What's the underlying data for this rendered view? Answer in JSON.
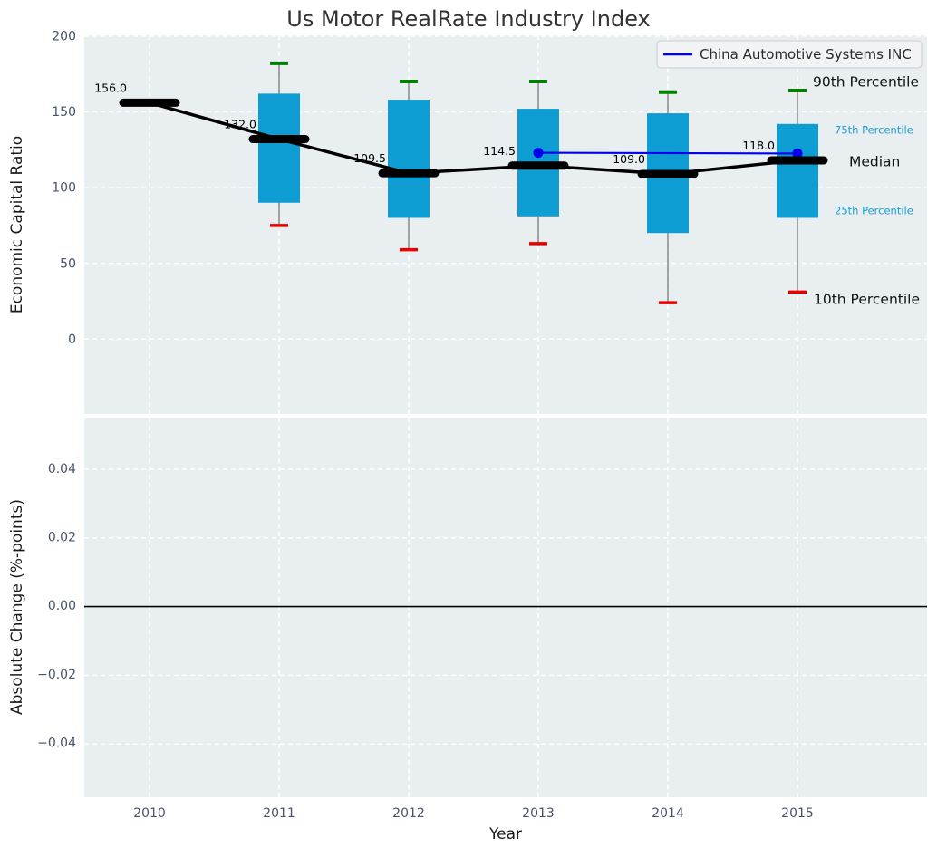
{
  "title": "Us Motor RealRate Industry Index",
  "colors": {
    "plot_background": "#e9eef0",
    "gridline": "#ffffff",
    "box_fill": "#0d9dd2",
    "p90_cap": "#008000",
    "p10_cap": "#e60000",
    "median_color": "#000000",
    "trend_line": "#000000",
    "company_line": "#0000ee",
    "whisker": "#888888",
    "zero_line": "#000000",
    "tick_label": "#47536b",
    "percentile_label_cyan": "#1a9fd4",
    "legend_fill": "#f2f3f5",
    "legend_border": "#c9ced6"
  },
  "chart_data": [
    {
      "type": "boxplot",
      "title": "Us Motor RealRate Industry Index",
      "ylabel": "Economic Capital Ratio",
      "xlabel": "Year",
      "xlim": [
        2009.5,
        2016.0
      ],
      "ylim": [
        -49.5,
        200.5
      ],
      "yticks": [
        0,
        50,
        100,
        150,
        200
      ],
      "ytick_labels": [
        "0",
        "50",
        "100",
        "150",
        "200"
      ],
      "years": [
        2010,
        2011,
        2012,
        2013,
        2014,
        2015
      ],
      "xtick_labels": [
        "2010",
        "2011",
        "2012",
        "2013",
        "2014",
        "2015"
      ],
      "grid": true,
      "legend_position": "upper right",
      "boxes": [
        {
          "year": 2010,
          "median": 156.0,
          "median_label": "156.0",
          "q1": null,
          "q3": null,
          "p10": null,
          "p90": null
        },
        {
          "year": 2011,
          "median": 132.0,
          "median_label": "132.0",
          "q1": 90,
          "q3": 162,
          "p10": 75,
          "p90": 182
        },
        {
          "year": 2012,
          "median": 109.5,
          "median_label": "109.5",
          "q1": 80,
          "q3": 158,
          "p10": 59,
          "p90": 170
        },
        {
          "year": 2013,
          "median": 114.5,
          "median_label": "114.5",
          "q1": 81,
          "q3": 152,
          "p10": 63,
          "p90": 170
        },
        {
          "year": 2014,
          "median": 109.0,
          "median_label": "109.0",
          "q1": 70,
          "q3": 149,
          "p10": 24,
          "p90": 163
        },
        {
          "year": 2015,
          "median": 118.0,
          "median_label": "118.0",
          "q1": 80,
          "q3": 142,
          "p10": 31,
          "p90": 164
        }
      ],
      "company_series": {
        "name": "China Automotive Systems INC",
        "x": [
          2013,
          2015
        ],
        "y": [
          123.0,
          122.5
        ]
      },
      "annotations": [
        {
          "label": "90th Percentile",
          "value": 170.0,
          "style": "large-black"
        },
        {
          "label": "75th Percentile",
          "value": 138.0,
          "style": "small-cyan"
        },
        {
          "label": "Median",
          "value": 117.5,
          "style": "large-black"
        },
        {
          "label": "25th Percentile",
          "value": 85.0,
          "style": "small-cyan"
        },
        {
          "label": "10th Percentile",
          "value": 26.5,
          "style": "large-black"
        }
      ]
    },
    {
      "type": "line",
      "ylabel": "Absolute Change (%-points)",
      "xlabel": "Year",
      "ylim": [
        -0.0555,
        0.055
      ],
      "yticks": [
        -0.04,
        -0.02,
        0.0,
        0.02,
        0.04
      ],
      "ytick_labels": [
        "−0.04",
        "−0.02",
        "0.00",
        "0.02",
        "0.04"
      ],
      "zero_line": 0.0,
      "series": []
    }
  ]
}
